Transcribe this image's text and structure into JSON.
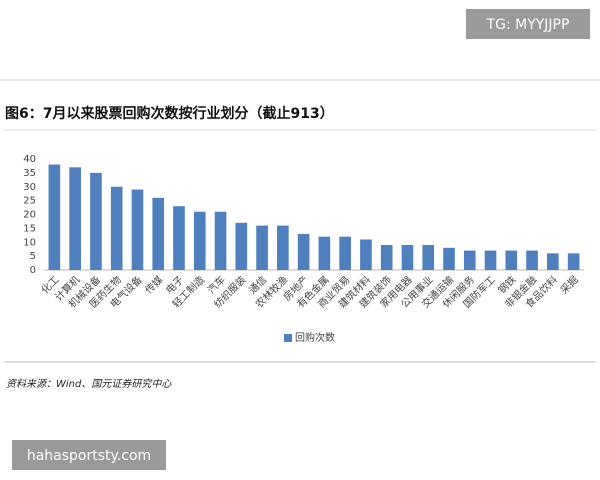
{
  "chart_data": {
    "type": "bar",
    "title": "图6：7月以来股票回购次数按行业划分（截止913）",
    "source": "资料来源：Wind、国元证券研究中心",
    "categories": [
      "化工",
      "计算机",
      "机械设备",
      "医药生物",
      "电气设备",
      "传媒",
      "电子",
      "轻工制造",
      "汽车",
      "纺织服装",
      "通信",
      "农林牧渔",
      "房地产",
      "有色金属",
      "商业贸易",
      "建筑材料",
      "建筑装饰",
      "家用电器",
      "公用事业",
      "交通运输",
      "休闲服务",
      "国防军工",
      "钢铁",
      "非银金融",
      "食品饮料",
      "采掘"
    ],
    "series": [
      {
        "name": "回购次数",
        "color": "#4f7fbc",
        "values": [
          38,
          37,
          35,
          30,
          29,
          26,
          23,
          21,
          21,
          17,
          16,
          16,
          13,
          12,
          12,
          11,
          9,
          9,
          9,
          8,
          7,
          7,
          7,
          7,
          6,
          6
        ]
      }
    ],
    "ylim": [
      0,
      40
    ],
    "yticks": [
      0,
      5,
      10,
      15,
      20,
      25,
      30,
      35,
      40
    ],
    "grid": false,
    "legend": "bottom"
  },
  "watermarks": [
    "TG: MYYJJPP",
    "hahasportsty.com"
  ]
}
